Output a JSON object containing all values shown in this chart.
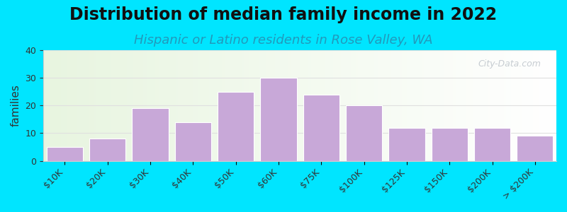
{
  "title": "Distribution of median family income in 2022",
  "subtitle": "Hispanic or Latino residents in Rose Valley, WA",
  "ylabel": "families",
  "categories": [
    "$10K",
    "$20K",
    "$30K",
    "$40K",
    "$50K",
    "$60K",
    "$75K",
    "$100K",
    "$125K",
    "$150K",
    "$200K",
    "> $200K"
  ],
  "values": [
    5,
    8,
    19,
    14,
    25,
    30,
    24,
    20,
    12,
    12,
    12,
    9
  ],
  "bar_color": "#c8a8d8",
  "bar_edge_color": "#ffffff",
  "ylim": [
    0,
    40
  ],
  "yticks": [
    0,
    10,
    20,
    30,
    40
  ],
  "background_outer": "#00e5ff",
  "background_inner_top": "#e8f5e0",
  "background_inner_bottom": "#ffffff",
  "grid_color": "#e0e0e0",
  "title_fontsize": 17,
  "subtitle_fontsize": 13,
  "ylabel_fontsize": 11,
  "tick_fontsize": 9,
  "watermark_text": "City-Data.com",
  "watermark_color": "#b0b8c0"
}
